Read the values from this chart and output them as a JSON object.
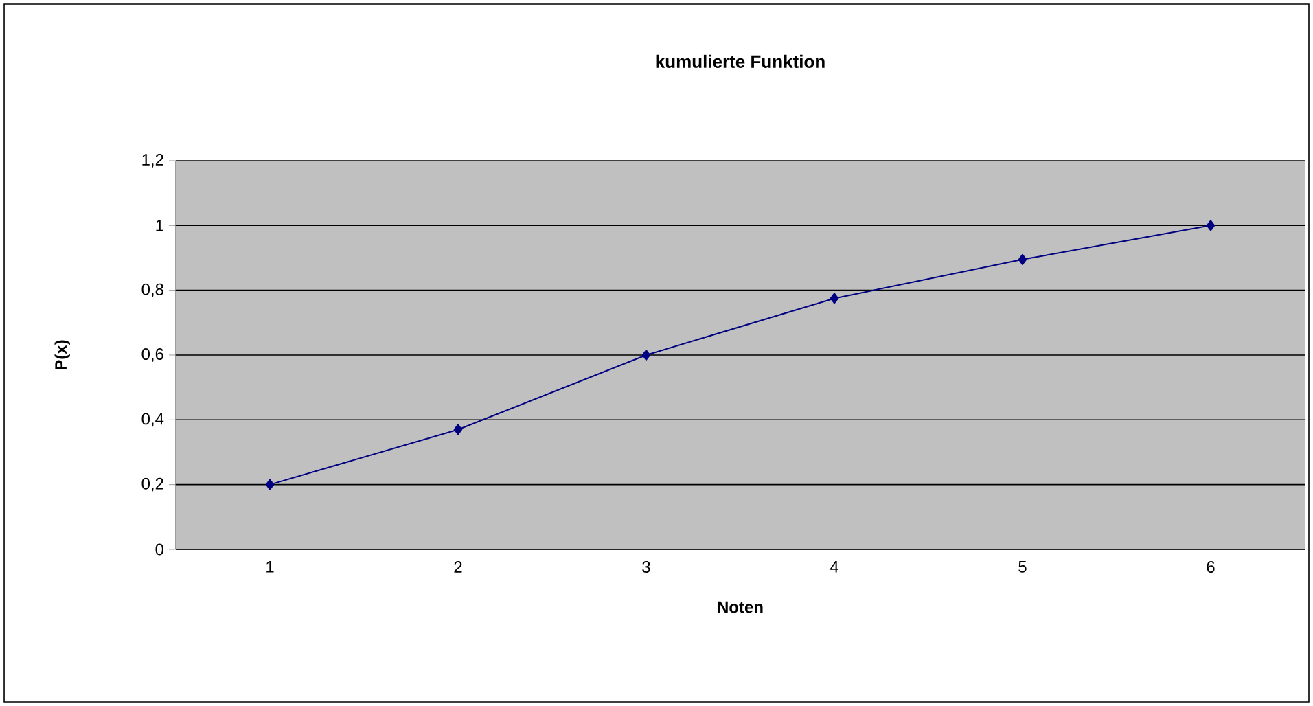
{
  "chart_data": {
    "type": "line",
    "title": "kumulierte Funktion",
    "xlabel": "Noten",
    "ylabel": "P(x)",
    "categories": [
      "1",
      "2",
      "3",
      "4",
      "5",
      "6"
    ],
    "series": [
      {
        "color": "#000080",
        "values": [
          0.2,
          0.37,
          0.6,
          0.775,
          0.895,
          1
        ]
      }
    ],
    "ylim": [
      0,
      1.2
    ],
    "yticks": [
      0,
      {
        "value": 0.2,
        "label": "0,2"
      },
      {
        "value": 0.4,
        "label": "0,4"
      },
      {
        "value": 0.6,
        "label": "0,6"
      },
      {
        "value": 0.8,
        "label": "0,8"
      },
      1,
      {
        "value": 1.2,
        "label": "1,2"
      }
    ],
    "grid": "y",
    "marker": "diamond",
    "line_style": "solid"
  }
}
